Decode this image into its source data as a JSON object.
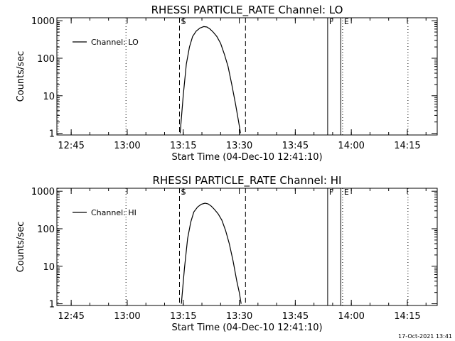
{
  "footer": {
    "timestamp": "17-Oct-2021 13:41"
  },
  "chart_data": [
    {
      "type": "line",
      "title": "RHESSI PARTICLE_RATE Channel: LO",
      "xlabel": "Start Time (04-Dec-10 12:41:10)",
      "ylabel": "Counts/sec",
      "y_scale": "log",
      "xlim": [
        "12:41:10",
        "14:23:00"
      ],
      "ylim": [
        0.9,
        1200
      ],
      "x_ticks": [
        "12:45",
        "13:00",
        "13:15",
        "13:30",
        "13:45",
        "14:00",
        "14:15"
      ],
      "y_ticks": [
        "1",
        "10",
        "100",
        "1000"
      ],
      "legend": {
        "position": "top-left",
        "label": "Channel: LO"
      },
      "markers": [
        {
          "time": "12:41:30",
          "style": "dotted",
          "label": ""
        },
        {
          "time": "12:59:40",
          "style": "dotted",
          "label": ""
        },
        {
          "time": "13:14:00",
          "style": "dashed",
          "label": "S"
        },
        {
          "time": "13:31:40",
          "style": "dashed",
          "label": ""
        },
        {
          "time": "13:53:40",
          "style": "solid",
          "label": "F"
        },
        {
          "time": "13:57:10",
          "style": "solid",
          "label": ""
        },
        {
          "time": "13:57:40",
          "style": "dotted",
          "label": "E"
        },
        {
          "time": "14:15:10",
          "style": "dotted",
          "label": ""
        }
      ],
      "series": [
        {
          "name": "Channel: LO",
          "x": [
            "13:14:10",
            "13:15:00",
            "13:15:50",
            "13:16:40",
            "13:17:30",
            "13:18:30",
            "13:19:30",
            "13:20:30",
            "13:21:20",
            "13:22:10",
            "13:23:00",
            "13:24:00",
            "13:25:00",
            "13:26:00",
            "13:27:00",
            "13:28:00",
            "13:29:00",
            "13:29:50",
            "13:30:20"
          ],
          "y": [
            1,
            10,
            70,
            200,
            380,
            530,
            640,
            700,
            680,
            600,
            500,
            380,
            250,
            130,
            60,
            20,
            6,
            2,
            1
          ]
        }
      ]
    },
    {
      "type": "line",
      "title": "RHESSI PARTICLE_RATE Channel: HI",
      "xlabel": "Start Time (04-Dec-10 12:41:10)",
      "ylabel": "Counts/sec",
      "y_scale": "log",
      "xlim": [
        "12:41:10",
        "14:23:00"
      ],
      "ylim": [
        0.9,
        1200
      ],
      "x_ticks": [
        "12:45",
        "13:00",
        "13:15",
        "13:30",
        "13:45",
        "14:00",
        "14:15"
      ],
      "y_ticks": [
        "1",
        "10",
        "100",
        "1000"
      ],
      "legend": {
        "position": "top-left",
        "label": "Channel: HI"
      },
      "markers": [
        {
          "time": "12:41:30",
          "style": "dotted",
          "label": ""
        },
        {
          "time": "12:59:40",
          "style": "dotted",
          "label": ""
        },
        {
          "time": "13:14:00",
          "style": "dashed",
          "label": "S"
        },
        {
          "time": "13:31:40",
          "style": "dashed",
          "label": ""
        },
        {
          "time": "13:53:40",
          "style": "solid",
          "label": "F"
        },
        {
          "time": "13:57:10",
          "style": "solid",
          "label": ""
        },
        {
          "time": "13:57:40",
          "style": "dotted",
          "label": "E"
        },
        {
          "time": "14:15:10",
          "style": "dotted",
          "label": ""
        }
      ],
      "series": [
        {
          "name": "Channel: HI",
          "x": [
            "13:14:30",
            "13:15:20",
            "13:16:10",
            "13:17:00",
            "13:17:50",
            "13:18:50",
            "13:19:50",
            "13:20:50",
            "13:21:40",
            "13:22:30",
            "13:23:20",
            "13:24:20",
            "13:25:20",
            "13:26:20",
            "13:27:20",
            "13:28:20",
            "13:29:20",
            "13:30:00",
            "13:30:30"
          ],
          "y": [
            1,
            9,
            55,
            150,
            280,
            380,
            450,
            480,
            460,
            400,
            330,
            250,
            170,
            90,
            40,
            14,
            4,
            2,
            1
          ]
        }
      ]
    }
  ]
}
